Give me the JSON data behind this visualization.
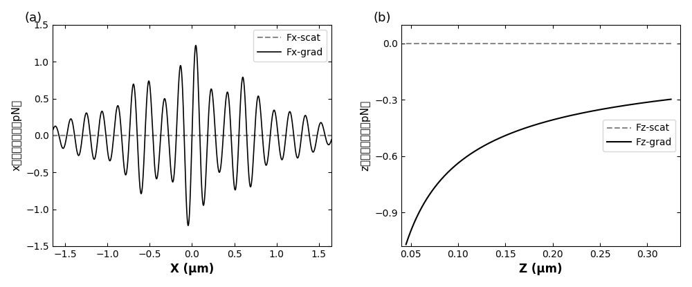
{
  "fig_width": 10.0,
  "fig_height": 4.15,
  "dpi": 100,
  "bg_color": "#f0f0f0",
  "panel_a": {
    "label": "(a)",
    "xlabel": "X (μm)",
    "ylabel": "x方向上的光力（pN）",
    "xlim": [
      -1.65,
      1.65
    ],
    "ylim": [
      -1.5,
      1.5
    ],
    "xticks": [
      -1.5,
      -1.0,
      -0.5,
      0.0,
      0.5,
      1.0,
      1.5
    ],
    "yticks": [
      -1.5,
      -1.0,
      -0.5,
      0.0,
      0.5,
      1.0,
      1.5
    ],
    "scat_label": "Fx-scat",
    "grad_label": "Fx-grad",
    "scat_color": "#888888",
    "grad_color": "#000000"
  },
  "panel_b": {
    "label": "(b)",
    "xlabel": "Z (μm)",
    "ylabel": "z方向上的光力（pN）",
    "xlim": [
      0.04,
      0.335
    ],
    "ylim": [
      -1.08,
      0.1
    ],
    "xticks": [
      0.05,
      0.1,
      0.15,
      0.2,
      0.25,
      0.3
    ],
    "yticks": [
      -0.9,
      -0.6,
      -0.3,
      0.0
    ],
    "scat_label": "Fz-scat",
    "grad_label": "Fz-grad",
    "scat_color": "#888888",
    "grad_color": "#000000"
  }
}
